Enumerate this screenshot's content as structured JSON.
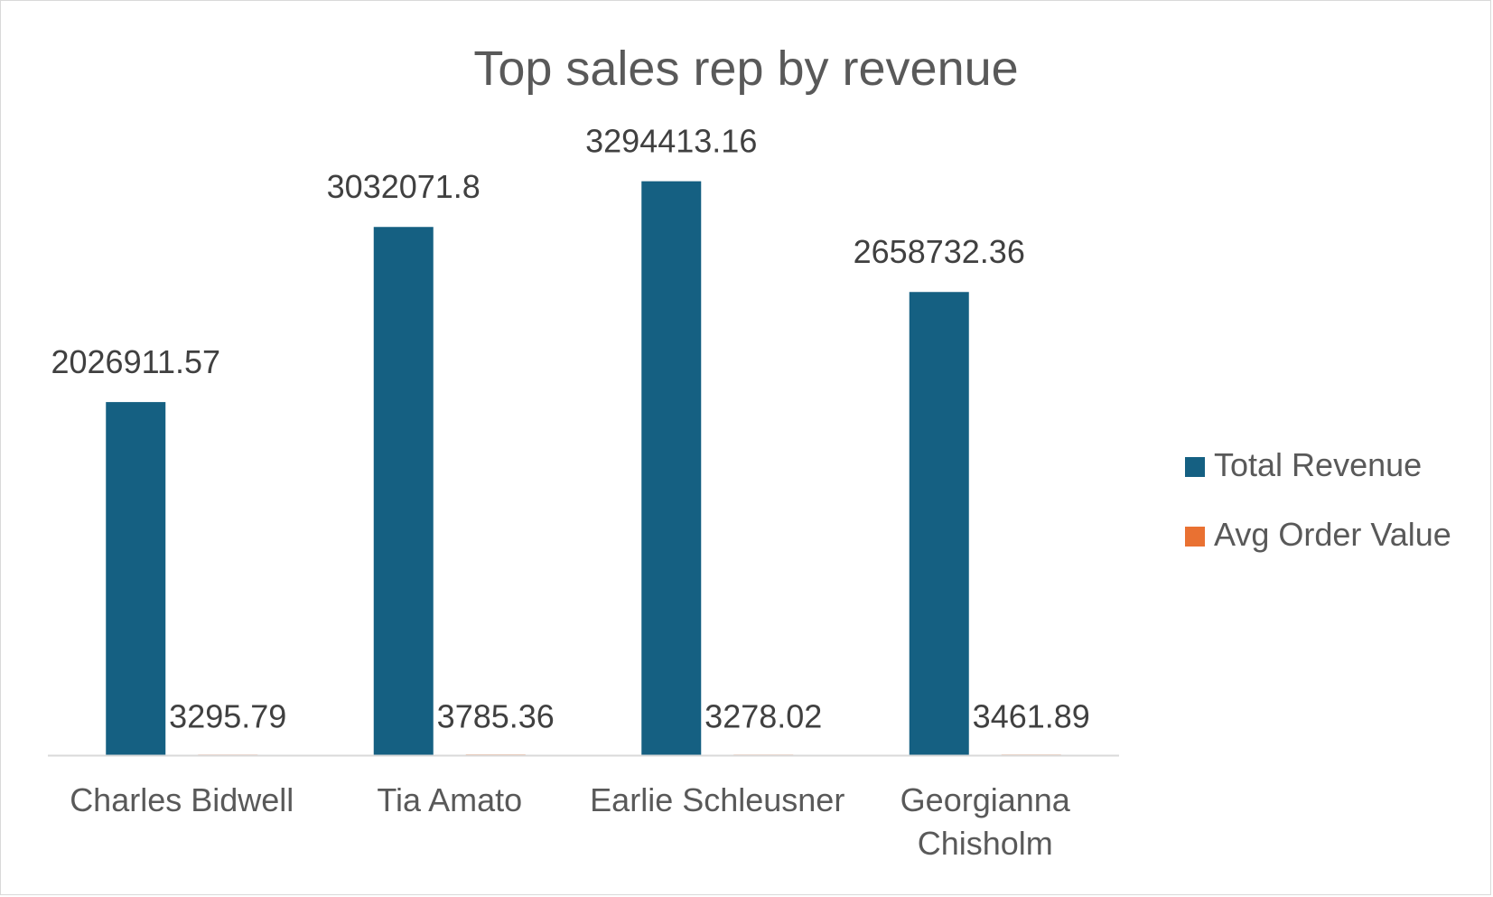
{
  "chart_data": {
    "type": "bar",
    "title": "Top sales rep by revenue",
    "xlabel": "",
    "ylabel": "",
    "categories": [
      [
        "Charles Bidwell"
      ],
      [
        "Tia Amato"
      ],
      [
        "Earlie Schleusner"
      ],
      [
        "Georgianna",
        "Chisholm"
      ]
    ],
    "series": [
      {
        "name": "Total Revenue",
        "color": "#156082",
        "values": [
          2026911.57,
          3032071.8,
          3294413.16,
          2658732.36
        ],
        "labels": [
          "2026911.57",
          "3032071.8",
          "3294413.16",
          "2658732.36"
        ]
      },
      {
        "name": "Avg Order Value",
        "color": "#E97132",
        "values": [
          3295.79,
          3785.36,
          3278.02,
          3461.89
        ],
        "labels": [
          "3295.79",
          "3785.36",
          "3278.02",
          "3461.89"
        ]
      }
    ],
    "ylim": [
      0,
      3500000
    ],
    "grid": false,
    "legend_position": "right",
    "axis_color": "#d9d9d9",
    "label_color": "#404040"
  }
}
